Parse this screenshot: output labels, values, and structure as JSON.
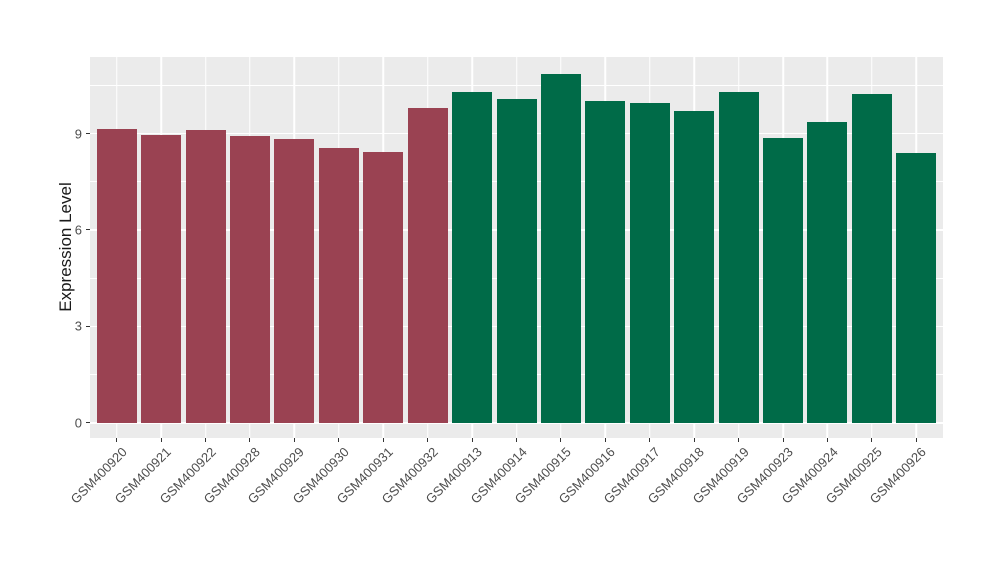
{
  "chart_data": {
    "type": "bar",
    "title": "",
    "xlabel": "",
    "ylabel": "Expression Level",
    "yticks": [
      0,
      3,
      6,
      9
    ],
    "yticks_minor": [
      1.5,
      4.5,
      7.5,
      10.5
    ],
    "ylim": [
      -0.47,
      11.38
    ],
    "grid": "on",
    "legend_position": "none",
    "categories": [
      "GSM400920",
      "GSM400921",
      "GSM400922",
      "GSM400928",
      "GSM400929",
      "GSM400930",
      "GSM400931",
      "GSM400932",
      "GSM400913",
      "GSM400914",
      "GSM400915",
      "GSM400916",
      "GSM400917",
      "GSM400918",
      "GSM400919",
      "GSM400923",
      "GSM400924",
      "GSM400925",
      "GSM400926"
    ],
    "values": [
      9.15,
      8.95,
      9.1,
      8.92,
      8.83,
      8.54,
      8.42,
      9.8,
      10.3,
      10.07,
      10.85,
      10.01,
      9.95,
      9.7,
      10.28,
      8.85,
      9.35,
      10.23,
      8.4
    ],
    "bar_groups": [
      "maroon",
      "maroon",
      "maroon",
      "maroon",
      "maroon",
      "maroon",
      "maroon",
      "maroon",
      "green",
      "green",
      "green",
      "green",
      "green",
      "green",
      "green",
      "green",
      "green",
      "green",
      "green"
    ],
    "group_colors": {
      "maroon": "#9A4252",
      "green": "#006B48"
    },
    "colors": {
      "figure_background": "#FFFFFF",
      "panel_background": "#EBEBEB",
      "grid": "#FFFFFF",
      "axis_text": "#4D4D4D",
      "axis_title": "#1A1A1A",
      "tick_marks": "#333333"
    }
  }
}
